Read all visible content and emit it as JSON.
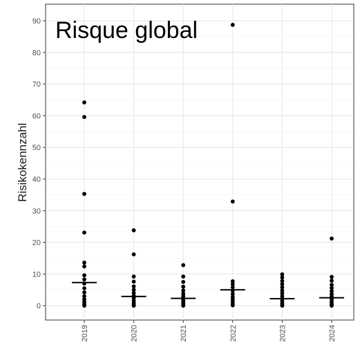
{
  "chart_data": {
    "type": "scatter",
    "title": "Risque global",
    "xlabel": "",
    "ylabel": "Risikokennzahl",
    "ylim": [
      -4.5,
      95
    ],
    "yticks": [
      0,
      10,
      20,
      30,
      40,
      50,
      60,
      70,
      80,
      90
    ],
    "categories": [
      "2019",
      "2020",
      "2021",
      "2022",
      "2023",
      "2024"
    ],
    "grid": true,
    "point_color": "#000000",
    "median_color": "#000000",
    "points": [
      {
        "x": "2019",
        "y": [
          64.2,
          59.6,
          35.3,
          23.1,
          13.6,
          12.4,
          9.6,
          8.3,
          7.0,
          5.5,
          4.2,
          3.0,
          2.0,
          1.2,
          0.5,
          0.0
        ]
      },
      {
        "x": "2020",
        "y": [
          23.8,
          16.2,
          9.2,
          7.6,
          6.1,
          5.0,
          4.0,
          3.1,
          2.4,
          1.6,
          0.9,
          0.3,
          0.0
        ]
      },
      {
        "x": "2021",
        "y": [
          12.8,
          9.2,
          7.5,
          6.0,
          4.8,
          3.8,
          3.0,
          2.4,
          1.8,
          1.2,
          0.7,
          0.2,
          0.0
        ]
      },
      {
        "x": "2022",
        "y": [
          88.7,
          32.9,
          7.7,
          6.8,
          5.8,
          4.7,
          3.7,
          2.8,
          2.0,
          1.3,
          0.6,
          0.1
        ]
      },
      {
        "x": "2023",
        "y": [
          9.9,
          8.9,
          7.8,
          6.8,
          5.8,
          4.8,
          3.9,
          3.0,
          2.2,
          1.5,
          0.8,
          0.2,
          0.0
        ]
      },
      {
        "x": "2024",
        "y": [
          21.2,
          9.1,
          7.9,
          6.6,
          5.6,
          4.6,
          3.7,
          2.9,
          2.1,
          1.4,
          0.8,
          0.3,
          0.0
        ]
      }
    ],
    "medians": [
      {
        "x": "2019",
        "y": 7.3
      },
      {
        "x": "2020",
        "y": 2.9
      },
      {
        "x": "2021",
        "y": 2.3
      },
      {
        "x": "2022",
        "y": 5.0
      },
      {
        "x": "2023",
        "y": 2.2
      },
      {
        "x": "2024",
        "y": 2.5
      }
    ]
  }
}
